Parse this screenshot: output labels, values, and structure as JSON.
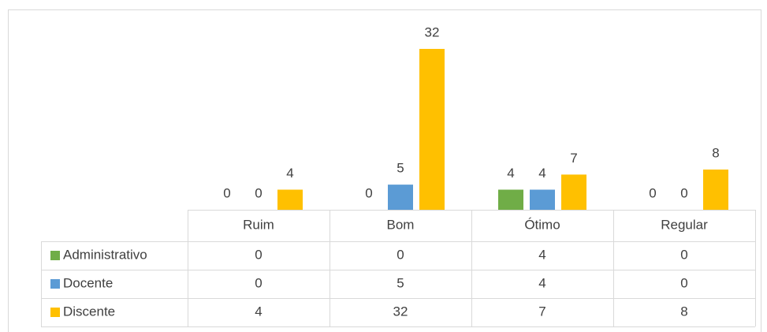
{
  "chart_data": {
    "type": "bar",
    "categories": [
      "Ruim",
      "Bom",
      "Ótimo",
      "Regular"
    ],
    "series": [
      {
        "name": "Administrativo",
        "color": "#70ad47",
        "values": [
          0,
          0,
          4,
          0
        ]
      },
      {
        "name": "Docente",
        "color": "#5b9bd5",
        "values": [
          0,
          5,
          4,
          0
        ]
      },
      {
        "name": "Discente",
        "color": "#ffc000",
        "values": [
          4,
          32,
          7,
          8
        ]
      }
    ]
  }
}
